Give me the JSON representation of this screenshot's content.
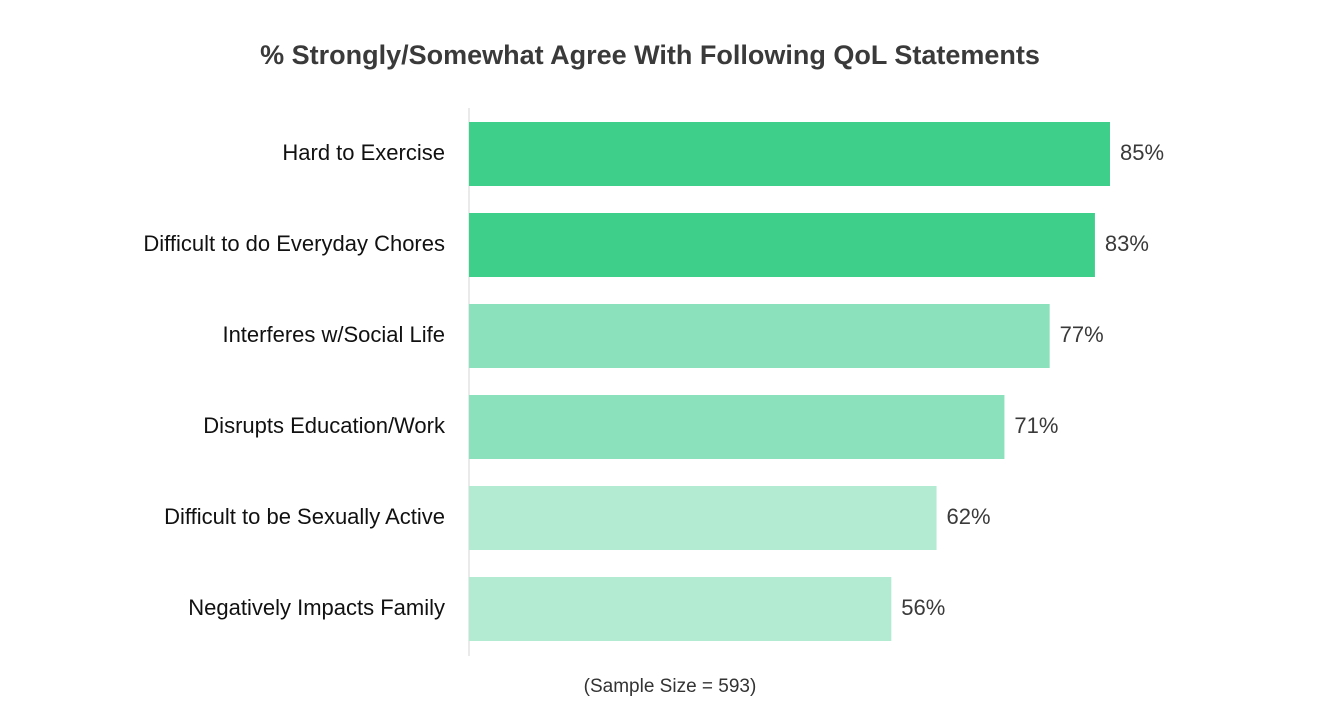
{
  "chart_data": {
    "type": "bar",
    "orientation": "horizontal",
    "title": "% Strongly/Somewhat Agree With Following QoL Statements",
    "categories": [
      "Hard to Exercise",
      "Difficult to do Everyday Chores",
      "Interferes w/Social Life",
      "Disrupts Education/Work",
      "Difficult to be Sexually Active",
      "Negatively Impacts Family"
    ],
    "values": [
      85,
      83,
      77,
      71,
      62,
      56
    ],
    "value_labels": [
      "85%",
      "83%",
      "77%",
      "71%",
      "62%",
      "56%"
    ],
    "bar_colors": [
      "#3ecf8a",
      "#3ecf8a",
      "#8ae1bb",
      "#8ae1bb",
      "#b2ead2",
      "#b2ead2"
    ],
    "xlim": [
      0,
      100
    ],
    "grid": false,
    "legend": false,
    "note": "(Sample Size = 593)"
  },
  "colors": {
    "axis_line": "#e4e4e4",
    "title_text": "#3a3a3a",
    "label_text": "#111111"
  }
}
